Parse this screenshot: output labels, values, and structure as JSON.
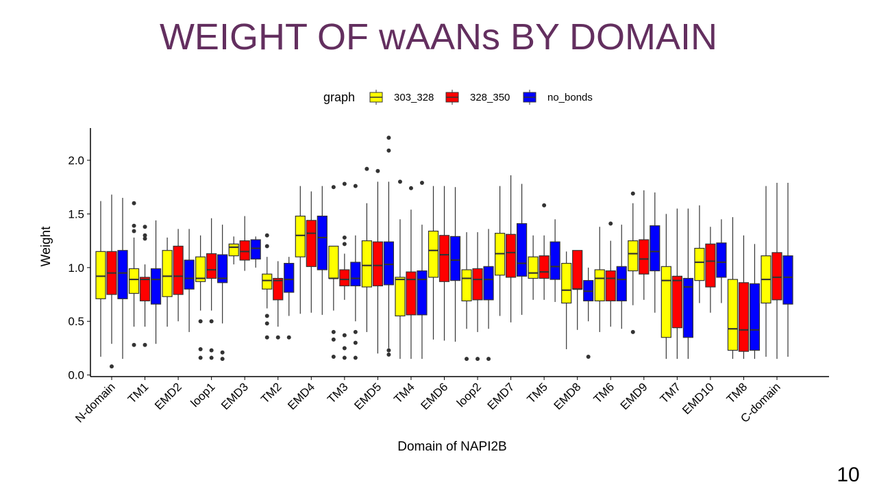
{
  "chart_data": {
    "type": "boxplot",
    "title": "WEIGHT OF wAANs BY DOMAIN",
    "xlabel": "Domain of NAPI2B",
    "ylabel": "Weight",
    "legend_title": "graph",
    "legend_position": "top",
    "categories": [
      "N-domain",
      "TM1",
      "EMD2",
      "loop1",
      "EMD3",
      "TM2",
      "EMD4",
      "TM3",
      "EMD5",
      "TM4",
      "EMD6",
      "loop2",
      "EMD7",
      "TM5",
      "EMD8",
      "TM6",
      "EMD9",
      "TM7",
      "EMD10",
      "TM8",
      "C-domain"
    ],
    "ylim": [
      -0.015,
      2.3
    ],
    "yticks": [
      {
        "value": 0,
        "label": "0.0"
      },
      {
        "value": 0.5,
        "label": "0.5"
      },
      {
        "value": 1,
        "label": "1.0"
      },
      {
        "value": 1.5,
        "label": "1.5"
      },
      {
        "value": 2,
        "label": "2.0"
      }
    ],
    "series": [
      {
        "name": "303_328",
        "color": "#ffff00",
        "values": [
          {
            "low": 0.17,
            "q1": 0.71,
            "median": 0.92,
            "q3": 1.15,
            "high": 1.62
          },
          {
            "low": 0.45,
            "q1": 0.76,
            "median": 0.89,
            "q3": 0.99,
            "high": 1.28,
            "outliers": [
              1.6,
              1.39,
              1.34,
              0.28
            ]
          },
          {
            "low": 0.45,
            "q1": 0.73,
            "median": 0.92,
            "q3": 1.16,
            "high": 1.28
          },
          {
            "low": 0.6,
            "q1": 0.87,
            "median": 0.9,
            "q3": 1.1,
            "high": 1.3,
            "outliers": [
              0.5,
              0.24,
              0.16
            ]
          },
          {
            "low": 1.03,
            "q1": 1.11,
            "median": 1.19,
            "q3": 1.22,
            "high": 1.29
          },
          {
            "low": 0.62,
            "q1": 0.8,
            "median": 0.88,
            "q3": 0.94,
            "high": 1.1,
            "outliers": [
              1.3,
              1.2,
              0.55,
              0.48,
              0.35
            ]
          },
          {
            "low": 0.57,
            "q1": 1.1,
            "median": 1.3,
            "q3": 1.48,
            "high": 1.76
          },
          {
            "low": 0.6,
            "q1": 0.9,
            "median": 0.9,
            "q3": 1.2,
            "high": 1.2,
            "outliers": [
              1.75,
              0.4,
              0.33,
              0.17
            ]
          },
          {
            "low": 0.4,
            "q1": 0.82,
            "median": 1.02,
            "q3": 1.25,
            "high": 1.6,
            "outliers": [
              1.92
            ]
          },
          {
            "low": 0.15,
            "q1": 0.55,
            "median": 0.89,
            "q3": 0.91,
            "high": 1.45,
            "outliers": [
              1.8
            ]
          },
          {
            "low": 0.33,
            "q1": 0.91,
            "median": 1.16,
            "q3": 1.34,
            "high": 1.76
          },
          {
            "low": 0.43,
            "q1": 0.69,
            "median": 0.9,
            "q3": 0.98,
            "high": 1.33,
            "outliers": [
              0.15
            ]
          },
          {
            "low": 0.55,
            "q1": 0.93,
            "median": 1.13,
            "q3": 1.32,
            "high": 1.76
          },
          {
            "low": 0.7,
            "q1": 0.9,
            "median": 0.95,
            "q3": 1.1,
            "high": 1.3
          },
          {
            "low": 0.24,
            "q1": 0.67,
            "median": 0.79,
            "q3": 1.04,
            "high": 1.15
          },
          {
            "low": 0.4,
            "q1": 0.69,
            "median": 0.9,
            "q3": 0.98,
            "high": 1.38
          },
          {
            "low": 0.65,
            "q1": 0.97,
            "median": 1.13,
            "q3": 1.25,
            "high": 1.6,
            "outliers": [
              1.69,
              0.4
            ]
          },
          {
            "low": 0.15,
            "q1": 0.35,
            "median": 0.88,
            "q3": 1.01,
            "high": 1.5
          },
          {
            "low": 0.67,
            "q1": 0.88,
            "median": 1.05,
            "q3": 1.18,
            "high": 1.58
          },
          {
            "low": 0.15,
            "q1": 0.23,
            "median": 0.43,
            "q3": 0.89,
            "high": 1.47
          },
          {
            "low": 0.17,
            "q1": 0.67,
            "median": 0.89,
            "q3": 1.11,
            "high": 1.76
          }
        ]
      },
      {
        "name": "328_350",
        "color": "#ff0000",
        "values": [
          {
            "low": 0.29,
            "q1": 0.75,
            "median": 0.95,
            "q3": 1.15,
            "high": 1.68,
            "outliers": [
              0.08
            ]
          },
          {
            "low": 0.45,
            "q1": 0.69,
            "median": 0.89,
            "q3": 0.91,
            "high": 1.03,
            "outliers": [
              1.38,
              1.3,
              1.27,
              0.28
            ]
          },
          {
            "low": 0.5,
            "q1": 0.75,
            "median": 0.92,
            "q3": 1.2,
            "high": 1.36
          },
          {
            "low": 0.6,
            "q1": 0.9,
            "median": 0.98,
            "q3": 1.13,
            "high": 1.46,
            "outliers": [
              0.5,
              0.23,
              0.16
            ]
          },
          {
            "low": 0.97,
            "q1": 1.07,
            "median": 1.15,
            "q3": 1.25,
            "high": 1.48
          },
          {
            "low": 0.45,
            "q1": 0.7,
            "median": 0.88,
            "q3": 0.9,
            "high": 1.06,
            "outliers": [
              0.35
            ]
          },
          {
            "low": 0.58,
            "q1": 1.01,
            "median": 1.32,
            "q3": 1.44,
            "high": 1.71
          },
          {
            "low": 0.7,
            "q1": 0.83,
            "median": 0.89,
            "q3": 0.98,
            "high": 1.13,
            "outliers": [
              1.78,
              1.28,
              1.22,
              0.37,
              0.25,
              0.16
            ]
          },
          {
            "low": 0.2,
            "q1": 0.83,
            "median": 1.02,
            "q3": 1.24,
            "high": 1.8,
            "outliers": [
              1.9
            ]
          },
          {
            "low": 0.15,
            "q1": 0.56,
            "median": 0.89,
            "q3": 0.96,
            "high": 1.54,
            "outliers": [
              1.74
            ]
          },
          {
            "low": 0.32,
            "q1": 0.87,
            "median": 1.12,
            "q3": 1.3,
            "high": 1.76
          },
          {
            "low": 0.4,
            "q1": 0.7,
            "median": 0.89,
            "q3": 0.99,
            "high": 1.33,
            "outliers": [
              0.15
            ]
          },
          {
            "low": 0.49,
            "q1": 0.91,
            "median": 1.14,
            "q3": 1.31,
            "high": 1.86
          },
          {
            "low": 0.7,
            "q1": 0.9,
            "median": 0.96,
            "q3": 1.11,
            "high": 1.3,
            "outliers": [
              1.58
            ]
          },
          {
            "low": 0.42,
            "q1": 0.8,
            "median": 0.8,
            "q3": 1.16,
            "high": 1.16
          },
          {
            "low": 0.45,
            "q1": 0.69,
            "median": 0.9,
            "q3": 0.97,
            "high": 1.25,
            "outliers": [
              1.41
            ]
          },
          {
            "low": 0.7,
            "q1": 0.94,
            "median": 1.08,
            "q3": 1.26,
            "high": 1.72
          },
          {
            "low": 0.15,
            "q1": 0.44,
            "median": 0.88,
            "q3": 0.92,
            "high": 1.55
          },
          {
            "low": 0.58,
            "q1": 0.82,
            "median": 1.06,
            "q3": 1.22,
            "high": 1.38
          },
          {
            "low": 0.15,
            "q1": 0.22,
            "median": 0.42,
            "q3": 0.86,
            "high": 1.3
          },
          {
            "low": 0.15,
            "q1": 0.7,
            "median": 0.91,
            "q3": 1.14,
            "high": 1.79
          }
        ]
      },
      {
        "name": "no_bonds",
        "color": "#0000ff",
        "values": [
          {
            "low": 0.15,
            "q1": 0.71,
            "median": 0.95,
            "q3": 1.16,
            "high": 1.65
          },
          {
            "low": 0.29,
            "q1": 0.66,
            "median": 0.89,
            "q3": 0.99,
            "high": 1.44
          },
          {
            "low": 0.4,
            "q1": 0.8,
            "median": 0.9,
            "q3": 1.07,
            "high": 1.36
          },
          {
            "low": 0.48,
            "q1": 0.86,
            "median": 0.9,
            "q3": 1.12,
            "high": 1.4,
            "outliers": [
              0.21,
              0.15
            ]
          },
          {
            "low": 1.0,
            "q1": 1.08,
            "median": 1.18,
            "q3": 1.26,
            "high": 1.29
          },
          {
            "low": 0.55,
            "q1": 0.77,
            "median": 0.89,
            "q3": 1.04,
            "high": 1.1,
            "outliers": [
              0.35
            ]
          },
          {
            "low": 0.56,
            "q1": 0.98,
            "median": 1.28,
            "q3": 1.48,
            "high": 1.76
          },
          {
            "low": 0.5,
            "q1": 0.83,
            "median": 0.9,
            "q3": 1.05,
            "high": 1.3,
            "outliers": [
              1.76,
              0.4,
              0.3,
              0.16
            ]
          },
          {
            "low": 0.25,
            "q1": 0.84,
            "median": 1.03,
            "q3": 1.24,
            "high": 1.8,
            "outliers": [
              2.21,
              2.09,
              0.23,
              0.19
            ]
          },
          {
            "low": 0.15,
            "q1": 0.56,
            "median": 0.89,
            "q3": 0.97,
            "high": 1.4,
            "outliers": [
              1.79
            ]
          },
          {
            "low": 0.31,
            "q1": 0.88,
            "median": 1.07,
            "q3": 1.29,
            "high": 1.75
          },
          {
            "low": 0.43,
            "q1": 0.7,
            "median": 0.89,
            "q3": 1.01,
            "high": 1.36,
            "outliers": [
              0.15
            ]
          },
          {
            "low": 0.56,
            "q1": 0.92,
            "median": 1.04,
            "q3": 1.41,
            "high": 1.78
          },
          {
            "low": 0.68,
            "q1": 0.89,
            "median": 1.01,
            "q3": 1.24,
            "high": 1.45
          },
          {
            "low": 0.5,
            "q1": 0.69,
            "median": 0.78,
            "q3": 0.88,
            "high": 1.0,
            "outliers": [
              0.17
            ]
          },
          {
            "low": 0.43,
            "q1": 0.69,
            "median": 0.89,
            "q3": 1.01,
            "high": 1.4
          },
          {
            "low": 0.58,
            "q1": 0.97,
            "median": 1.15,
            "q3": 1.39,
            "high": 1.7
          },
          {
            "low": 0.15,
            "q1": 0.35,
            "median": 0.82,
            "q3": 0.9,
            "high": 1.55
          },
          {
            "low": 0.67,
            "q1": 0.91,
            "median": 1.05,
            "q3": 1.23,
            "high": 1.45
          },
          {
            "low": 0.15,
            "q1": 0.23,
            "median": 0.42,
            "q3": 0.85,
            "high": 1.22
          },
          {
            "low": 0.17,
            "q1": 0.66,
            "median": 0.91,
            "q3": 1.11,
            "high": 1.79
          }
        ]
      }
    ]
  },
  "slide": {
    "page_number": "10"
  }
}
